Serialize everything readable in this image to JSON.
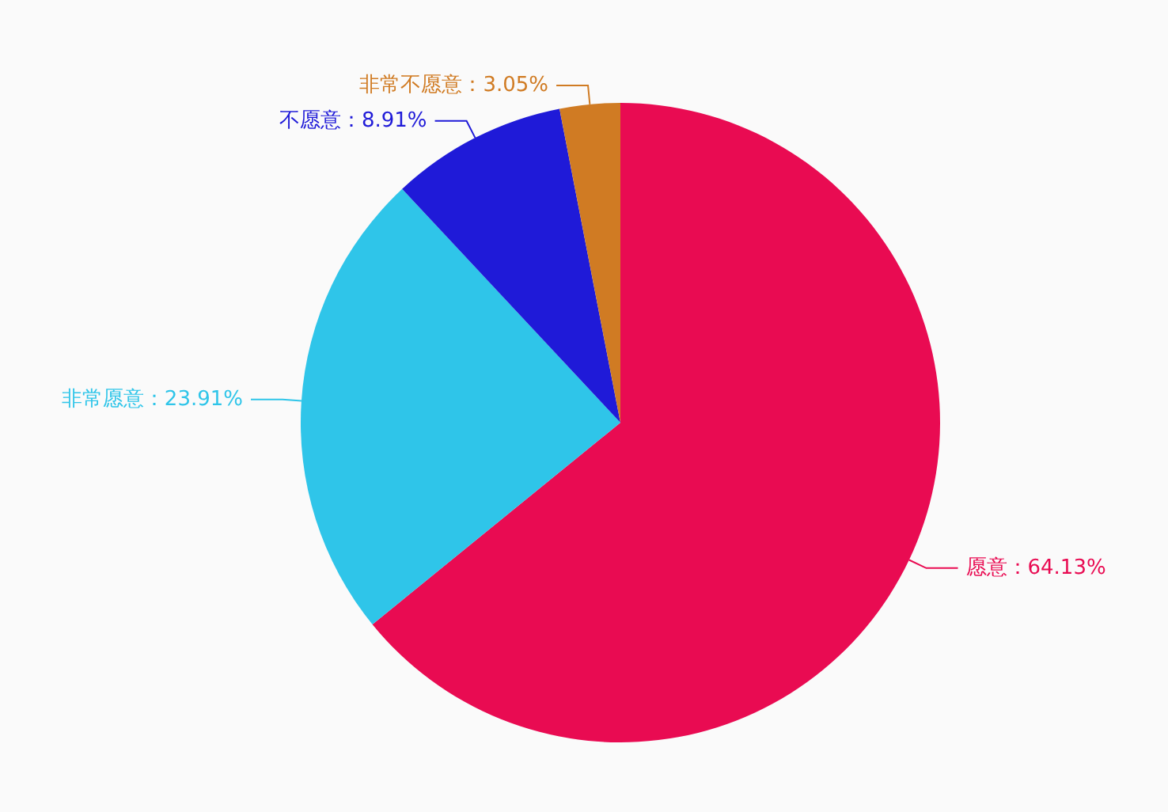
{
  "chart_data": {
    "type": "pie",
    "categories": [
      "愿意",
      "非常愿意",
      "不愿意",
      "非常不愿意"
    ],
    "values": [
      64.13,
      23.91,
      8.91,
      3.05
    ],
    "colors": [
      "#e90b52",
      "#2fc5e9",
      "#1f1ad8",
      "#d07b23"
    ],
    "value_labels": [
      "64.13%",
      "23.91%",
      "8.91%",
      "3.05%"
    ],
    "legend": false
  }
}
